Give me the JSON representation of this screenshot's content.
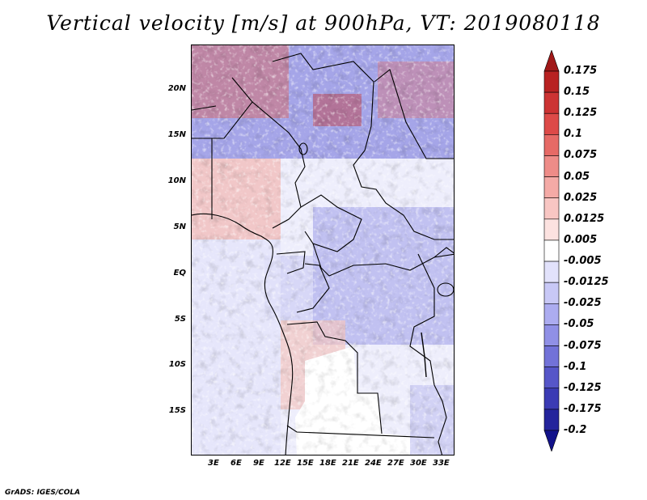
{
  "title": "Vertical velocity [m/s] at 900hPa, VT: 2019080118",
  "credit": "GrADS: IGES/COLA",
  "map": {
    "latitude_labels": [
      "20N",
      "15N",
      "10N",
      "5N",
      "EQ",
      "5S",
      "10S",
      "15S"
    ],
    "longitude_labels": [
      "3E",
      "6E",
      "9E",
      "12E",
      "15E",
      "18E",
      "21E",
      "24E",
      "27E",
      "30E",
      "33E"
    ],
    "lat_range": [
      -20,
      25
    ],
    "lon_range": [
      0,
      34.5
    ]
  },
  "colorbar": {
    "labels": [
      "0.175",
      "0.15",
      "0.125",
      "0.1",
      "0.075",
      "0.05",
      "0.025",
      "0.0125",
      "0.005",
      "-0.005",
      "-0.0125",
      "-0.025",
      "-0.05",
      "-0.075",
      "-0.1",
      "-0.125",
      "-0.175",
      "-0.2"
    ],
    "colors": [
      "#a01818",
      "#b82222",
      "#cc3333",
      "#dd4a48",
      "#e66a66",
      "#ee8c88",
      "#f4aaa6",
      "#f8c6c3",
      "#fce2e0",
      "#ffffff",
      "#e2e2fb",
      "#c8c8f6",
      "#acacf0",
      "#9090e6",
      "#7272d8",
      "#5656c8",
      "#3b3bb4",
      "#24249c",
      "#12128a"
    ]
  }
}
